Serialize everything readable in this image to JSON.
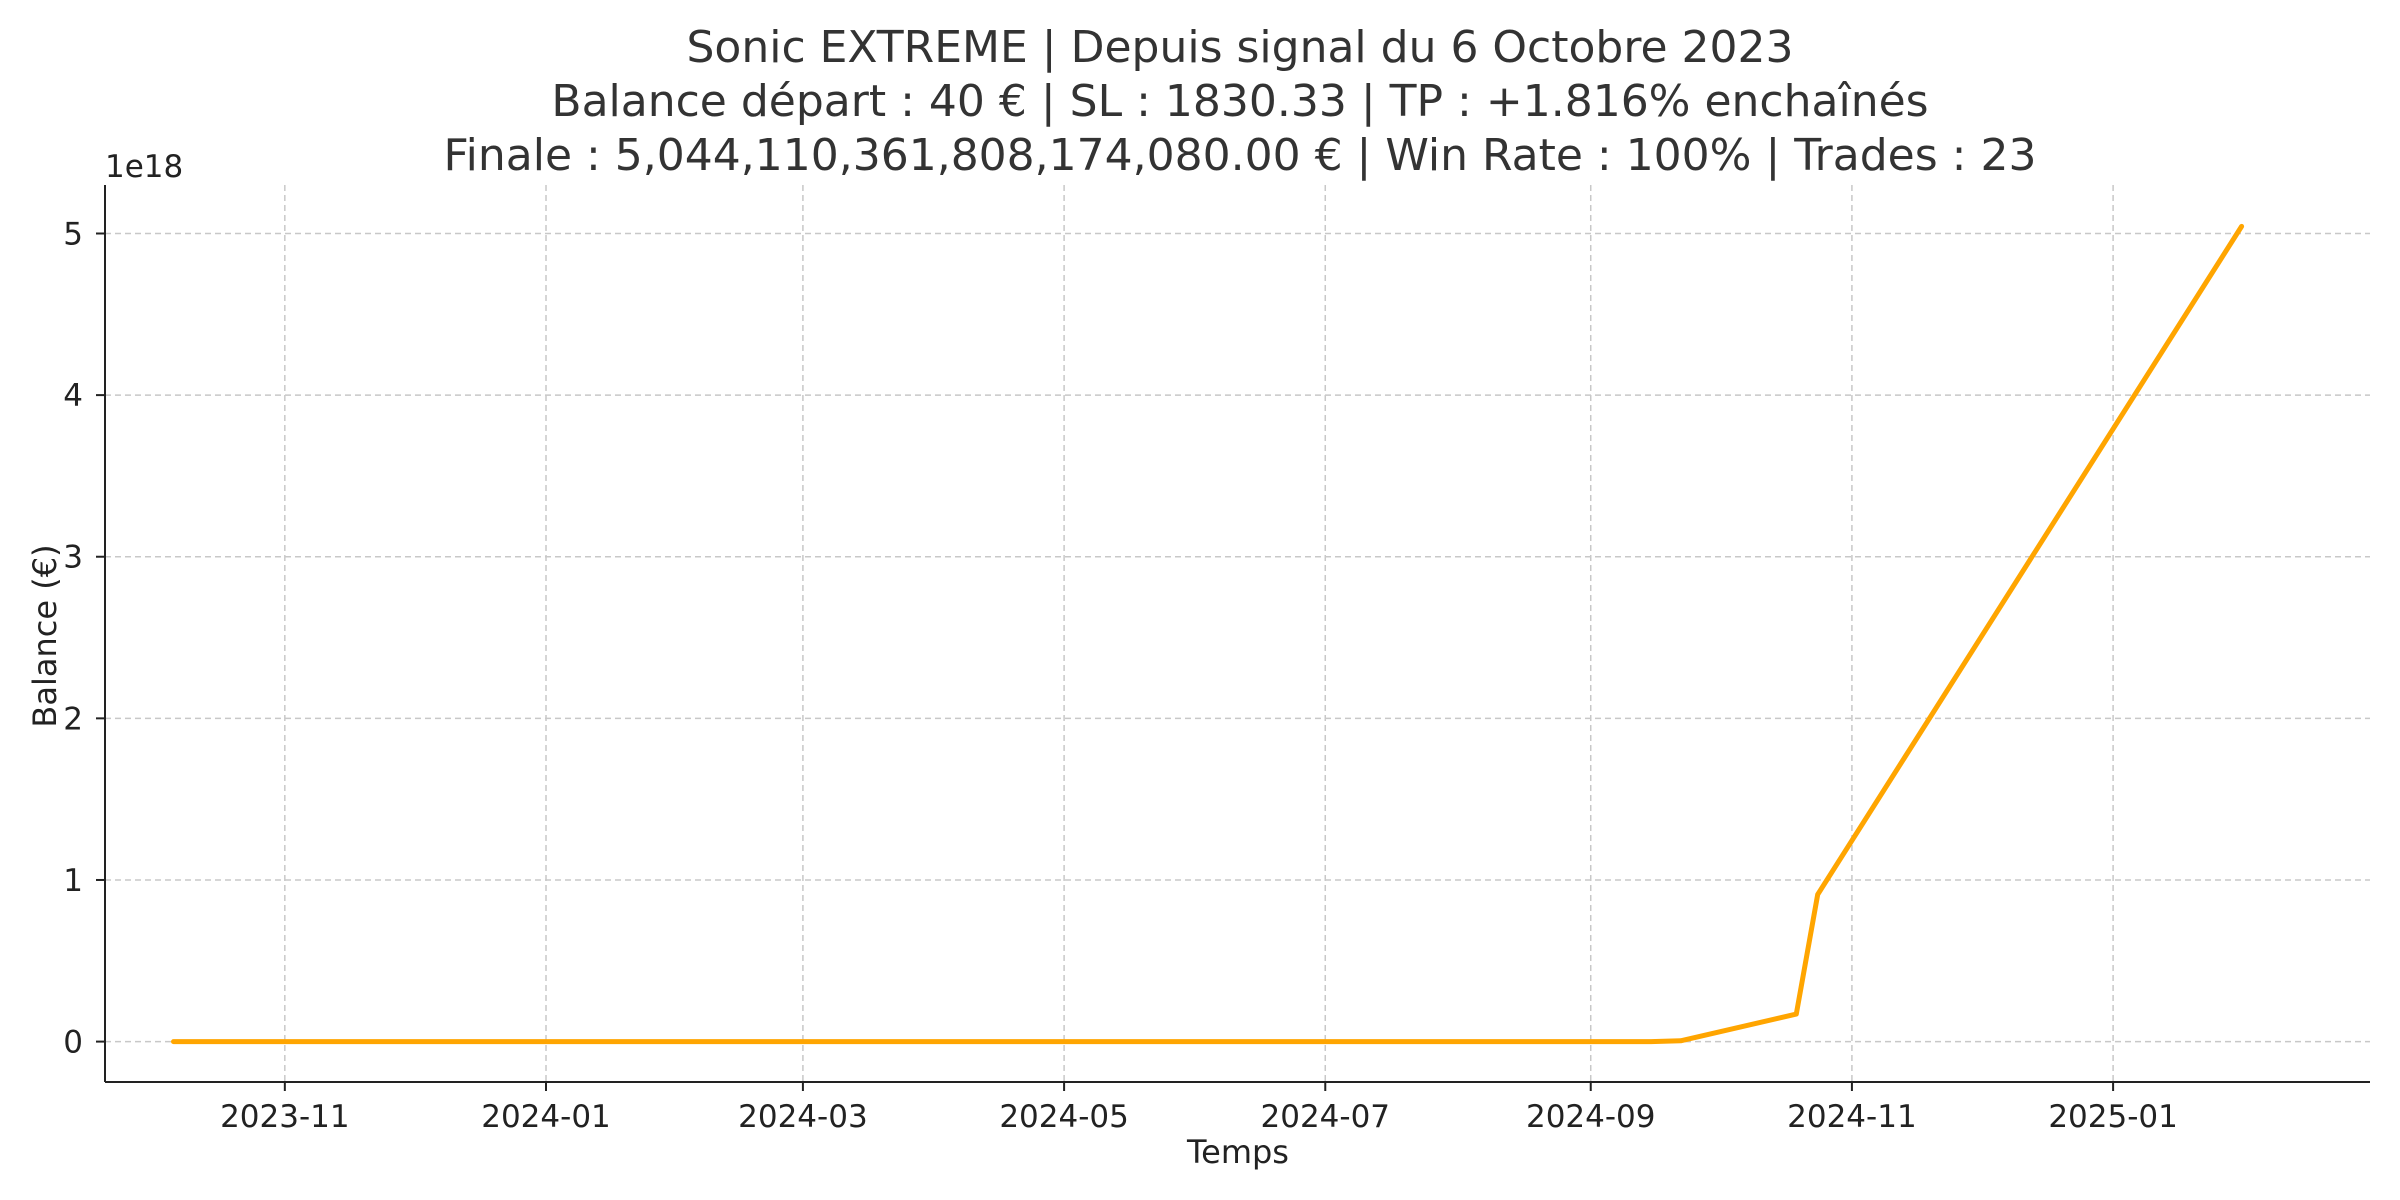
{
  "chart_data": {
    "type": "line",
    "title_lines": [
      "Sonic EXTREME | Depuis signal du 6 Octobre 2023",
      "Balance départ : 40 € | SL : 1830.33 | TP : +1.816% enchaînés",
      "Finale : 5,044,110,361,808,174,080.00 € | Win Rate : 100% | Trades : 23"
    ],
    "xlabel": "Temps",
    "ylabel": "Balance (€)",
    "y_offset_label": "1e18",
    "x_type": "date",
    "xlim": [
      "2023-09-20",
      "2025-03-02"
    ],
    "ylim": [
      -0.25,
      5.3
    ],
    "y_scale_factor": 1e+18,
    "x_ticks": [
      {
        "date": "2023-11-01",
        "label": "2023-11"
      },
      {
        "date": "2024-01-01",
        "label": "2024-01"
      },
      {
        "date": "2024-03-01",
        "label": "2024-03"
      },
      {
        "date": "2024-05-01",
        "label": "2024-05"
      },
      {
        "date": "2024-07-01",
        "label": "2024-07"
      },
      {
        "date": "2024-09-01",
        "label": "2024-09"
      },
      {
        "date": "2024-11-01",
        "label": "2024-11"
      },
      {
        "date": "2025-01-01",
        "label": "2025-01"
      }
    ],
    "y_ticks": [
      {
        "value": 0,
        "label": "0"
      },
      {
        "value": 1,
        "label": "1"
      },
      {
        "value": 2,
        "label": "2"
      },
      {
        "value": 3,
        "label": "3"
      },
      {
        "value": 4,
        "label": "4"
      },
      {
        "value": 5,
        "label": "5"
      }
    ],
    "grid": true,
    "series": [
      {
        "color": "#FFA500",
        "x": [
          "2023-10-06",
          "2024-09-15",
          "2024-09-22",
          "2024-10-19",
          "2024-10-24",
          "2025-01-31"
        ],
        "y": [
          0,
          0,
          0.005,
          0.17,
          0.91,
          5.044
        ]
      }
    ]
  }
}
